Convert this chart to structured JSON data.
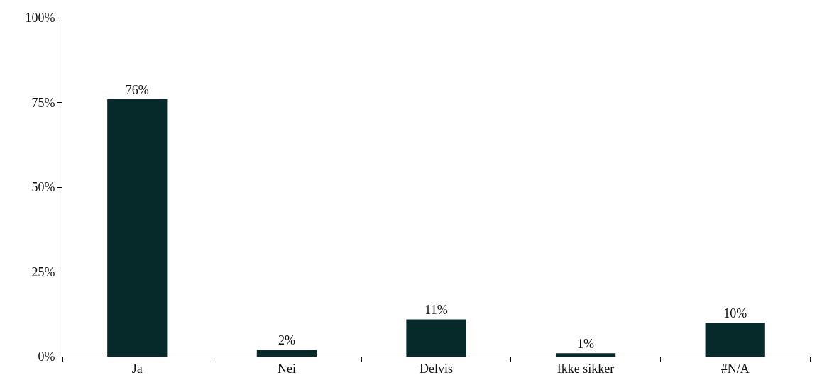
{
  "chart_data": {
    "type": "bar",
    "categories": [
      "Ja",
      "Nei",
      "Delvis",
      "Ikke sikker",
      "#N/A"
    ],
    "values": [
      76,
      2,
      11,
      1,
      10
    ],
    "value_labels": [
      "76%",
      "2%",
      "11%",
      "1%",
      "10%"
    ],
    "color": "#062a2a",
    "ylim": [
      0,
      100
    ],
    "yticks": [
      {
        "value": 0,
        "label": "0%"
      },
      {
        "value": 25,
        "label": "25%"
      },
      {
        "value": 50,
        "label": "50%"
      },
      {
        "value": 75,
        "label": "75%"
      },
      {
        "value": 100,
        "label": "100%"
      }
    ],
    "grid": false
  }
}
